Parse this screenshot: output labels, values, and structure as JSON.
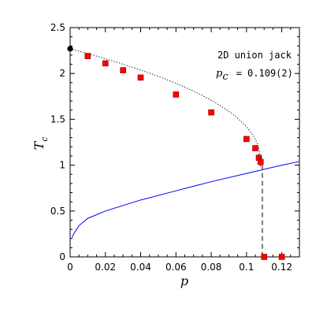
{
  "chart_data": {
    "type": "scatter",
    "title": "",
    "xlabel": "p",
    "ylabel": "T",
    "ylabel_subscript": "c",
    "xlim": [
      0,
      0.13
    ],
    "ylim": [
      0,
      2.5
    ],
    "xticks": [
      0,
      0.02,
      0.04,
      0.06,
      0.08,
      0.1,
      0.12
    ],
    "xtick_labels": [
      "0",
      "0.02",
      "0.04",
      "0.06",
      "0.08",
      "0.1",
      "0.12"
    ],
    "yticks": [
      0,
      0.5,
      1,
      1.5,
      2,
      2.5
    ],
    "ytick_labels": [
      "0",
      "0.5",
      "1",
      "1.5",
      "2",
      "2.5"
    ],
    "annotation": {
      "line1": "2D union jack",
      "line2_symbol": "p",
      "line2_subscript": "c",
      "line2_value": "= 0.109(2)"
    },
    "exact_point": {
      "x": 0,
      "y": 2.269,
      "color": "#000000"
    },
    "data_points": {
      "x": [
        0.01,
        0.02,
        0.03,
        0.04,
        0.06,
        0.08,
        0.1,
        0.105,
        0.107,
        0.108,
        0.11,
        0.12
      ],
      "y": [
        2.19,
        2.11,
        2.035,
        1.955,
        1.77,
        1.575,
        1.285,
        1.185,
        1.08,
        1.035,
        0.0,
        0.0
      ],
      "err": [
        0.02,
        0.02,
        0.02,
        0.02,
        0.02,
        0.02,
        0.03,
        0.03,
        0.04,
        0.05,
        0,
        0
      ],
      "color": "#ff0000"
    },
    "fit_curve": {
      "style": "dotted",
      "x_end": 0.108,
      "exponent": 0.45
    },
    "vertical_segment": {
      "style": "dashed",
      "x": 0.109,
      "y_top": 1.0,
      "y_bottom": 0.0
    },
    "blue_curve": {
      "color": "#0000ff",
      "x": [
        0.001,
        0.002,
        0.005,
        0.01,
        0.02,
        0.03,
        0.04,
        0.06,
        0.08,
        0.1,
        0.12,
        0.13
      ],
      "y": [
        0.21,
        0.25,
        0.34,
        0.42,
        0.5,
        0.56,
        0.62,
        0.72,
        0.82,
        0.91,
        1.0,
        1.04
      ]
    }
  }
}
